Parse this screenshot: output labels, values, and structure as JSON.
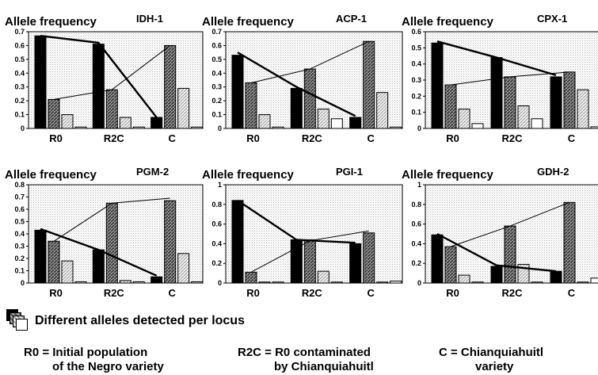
{
  "chart_data": [
    {
      "type": "bar",
      "title": "IDH-1",
      "ylabel": "Allele frequency",
      "categories": [
        "R0",
        "R2C",
        "C"
      ],
      "ylim": [
        0,
        0.7
      ],
      "yticks": [
        "0",
        "0.1",
        "0.2",
        "0.3",
        "0.4",
        "0.5",
        "0.6",
        "0.7"
      ],
      "series": [
        {
          "values": [
            0.67,
            0.61,
            0.08
          ]
        },
        {
          "values": [
            0.21,
            0.28,
            0.6
          ]
        },
        {
          "values": [
            0.1,
            0.08,
            0.29
          ]
        },
        {
          "values": [
            0.01,
            0.01,
            0.01
          ]
        }
      ],
      "lines": [
        {
          "weight": "thick",
          "values": [
            0.67,
            0.62,
            0.08
          ]
        },
        {
          "weight": "thin",
          "values": [
            0.21,
            0.28,
            0.6
          ]
        }
      ]
    },
    {
      "type": "bar",
      "title": "ACP-1",
      "ylabel": "Allele frequency",
      "categories": [
        "R0",
        "R2C",
        "C"
      ],
      "ylim": [
        0,
        0.7
      ],
      "yticks": [
        "0",
        "0.1",
        "0.2",
        "0.3",
        "0.4",
        "0.5",
        "0.6",
        "0.7"
      ],
      "series": [
        {
          "values": [
            0.53,
            0.29,
            0.08
          ]
        },
        {
          "values": [
            0.33,
            0.43,
            0.63
          ]
        },
        {
          "values": [
            0.1,
            0.14,
            0.26
          ]
        },
        {
          "values": [
            0.01,
            0.07,
            0.01
          ]
        }
      ],
      "lines": [
        {
          "weight": "thick",
          "values": [
            0.55,
            0.3,
            0.09
          ]
        },
        {
          "weight": "thin",
          "values": [
            0.33,
            0.43,
            0.63
          ]
        }
      ]
    },
    {
      "type": "bar",
      "title": "CPX-1",
      "ylabel": "Allele frequency",
      "categories": [
        "R0",
        "R2C",
        "C"
      ],
      "ylim": [
        0,
        0.6
      ],
      "yticks": [
        "0",
        "0.1",
        "0.2",
        "0.3",
        "0.4",
        "0.5",
        "0.6"
      ],
      "series": [
        {
          "values": [
            0.53,
            0.44,
            0.32
          ]
        },
        {
          "values": [
            0.27,
            0.32,
            0.35
          ]
        },
        {
          "values": [
            0.12,
            0.14,
            0.24
          ]
        },
        {
          "values": [
            0.03,
            0.06,
            0.01
          ]
        }
      ],
      "lines": [
        {
          "weight": "thick",
          "values": [
            0.54,
            0.44,
            0.33
          ]
        },
        {
          "weight": "thin",
          "values": [
            0.27,
            0.32,
            0.35
          ]
        }
      ]
    },
    {
      "type": "bar",
      "title": "PGM-2",
      "ylabel": "Allele frequency",
      "categories": [
        "R0",
        "R2C",
        "C"
      ],
      "ylim": [
        0,
        0.8
      ],
      "yticks": [
        "0",
        "0.1",
        "0.2",
        "0.3",
        "0.4",
        "0.5",
        "0.6",
        "0.7",
        "0.8"
      ],
      "series": [
        {
          "values": [
            0.43,
            0.27,
            0.05
          ]
        },
        {
          "values": [
            0.34,
            0.65,
            0.67
          ]
        },
        {
          "values": [
            0.18,
            0.02,
            0.24
          ]
        },
        {
          "values": [
            0.01,
            0.01,
            0.01
          ]
        }
      ],
      "lines": [
        {
          "weight": "thick",
          "values": [
            0.44,
            0.27,
            0.06
          ]
        },
        {
          "weight": "thin",
          "values": [
            0.34,
            0.65,
            0.69
          ]
        }
      ]
    },
    {
      "type": "bar",
      "title": "PGI-1",
      "ylabel": "Allele frequency",
      "categories": [
        "R0",
        "R2C",
        "C"
      ],
      "ylim": [
        0,
        1
      ],
      "yticks": [
        "0",
        "0.2",
        "0.4",
        "0.6",
        "0.8",
        "1"
      ],
      "series": [
        {
          "values": [
            0.84,
            0.44,
            0.4
          ]
        },
        {
          "values": [
            0.11,
            0.44,
            0.51
          ]
        },
        {
          "values": [
            0.01,
            0.12,
            0.01
          ]
        },
        {
          "values": [
            0.01,
            0.01,
            0.02
          ]
        }
      ],
      "lines": [
        {
          "weight": "thick",
          "values": [
            0.84,
            0.44,
            0.41
          ]
        },
        {
          "weight": "thin",
          "values": [
            0.11,
            0.43,
            0.53
          ]
        }
      ]
    },
    {
      "type": "bar",
      "title": "GDH-2",
      "ylabel": "Allele frequency",
      "categories": [
        "R0",
        "R2C",
        "C"
      ],
      "ylim": [
        0,
        1
      ],
      "yticks": [
        "0",
        "0.2",
        "0.4",
        "0.6",
        "0.8",
        "1"
      ],
      "series": [
        {
          "values": [
            0.49,
            0.17,
            0.12
          ]
        },
        {
          "values": [
            0.37,
            0.58,
            0.82
          ]
        },
        {
          "values": [
            0.08,
            0.19,
            0.01
          ]
        },
        {
          "values": [
            0.01,
            0.01,
            0.05
          ]
        }
      ],
      "lines": [
        {
          "weight": "thick",
          "values": [
            0.5,
            0.18,
            0.12
          ]
        },
        {
          "weight": "thin",
          "values": [
            0.37,
            0.58,
            0.82
          ]
        }
      ]
    }
  ],
  "legend": {
    "text": "Different alleles detected per locus"
  },
  "notes": [
    {
      "line1": "R0 = Initial population",
      "line2": "of the Negro variety"
    },
    {
      "line1": "R2C = R0 contaminated",
      "line2": "by Chianquiahuitl"
    },
    {
      "line1": "C = Chianquiahuitl",
      "line2": "variety"
    }
  ]
}
